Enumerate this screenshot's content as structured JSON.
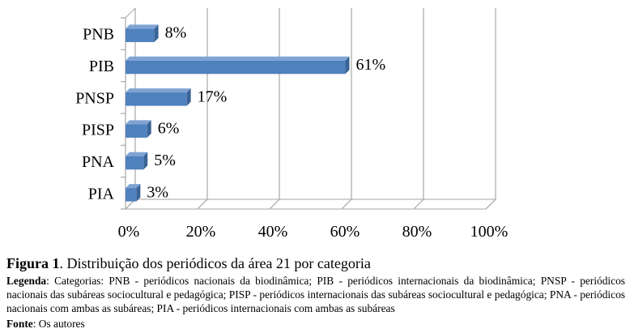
{
  "chart_data": {
    "type": "bar",
    "orientation": "horizontal",
    "categories": [
      "PNB",
      "PIB",
      "PNSP",
      "PISP",
      "PNA",
      "PIA"
    ],
    "values": [
      8,
      61,
      17,
      6,
      5,
      3
    ],
    "data_labels": [
      "8%",
      "61%",
      "17%",
      "6%",
      "5%",
      "3%"
    ],
    "xlim": [
      0,
      100
    ],
    "xticks": [
      0,
      20,
      40,
      60,
      80,
      100
    ],
    "xtick_labels": [
      "0%",
      "20%",
      "40%",
      "60%",
      "80%",
      "100%"
    ],
    "grid": true,
    "bar_color": "#4f81bd",
    "bar_side_color": "#3a6496",
    "bar_top_color": "#7fa4d3",
    "style": "3d"
  },
  "caption": {
    "label": "Figura 1",
    "title": ". Distribuição dos periódicos da área 21 por categoria",
    "legend_label": "Legenda",
    "legend_text": ": Categorias: PNB - periódicos nacionais da biodinâmica; PIB - periódicos internacionais da biodinâmica; PNSP - periódicos nacionais das subáreas sociocultural e pedagógica; PISP - periódicos internacionais das subáreas sociocultural e pedagógica; PNA - periódicos nacionais com ambas as subáreas; PIA - periódicos internacionais com ambas as subáreas",
    "source_label": "Fonte",
    "source_text": ": Os autores"
  }
}
